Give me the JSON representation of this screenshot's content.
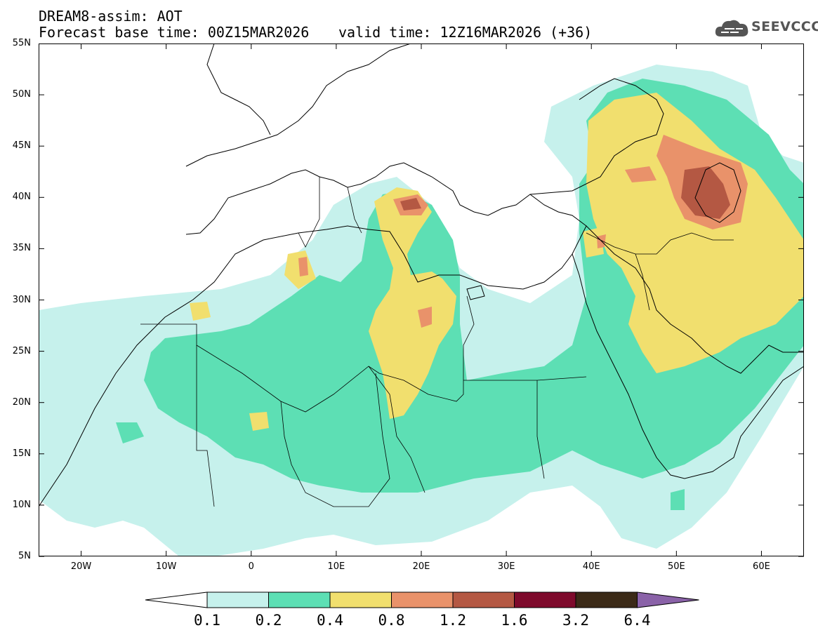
{
  "header": {
    "line1": "DREAM8-assim: AOT",
    "line2": "Forecast base time: 00Z15MAR2026",
    "line3": "valid time: 12Z16MAR2026 (+36)"
  },
  "logo": {
    "text": "SEEVCCC",
    "icon": "cloud-icon"
  },
  "map": {
    "type": "geographic-contour",
    "projection": "equirectangular",
    "lon_range": [
      -25,
      65
    ],
    "lat_range": [
      5,
      55
    ],
    "lat_labels": [
      "55N",
      "50N",
      "45N",
      "40N",
      "35N",
      "30N",
      "25N",
      "20N",
      "15N",
      "10N",
      "5N"
    ],
    "lon_labels": [
      "20W",
      "10W",
      "0",
      "10E",
      "20E",
      "30E",
      "40E",
      "50E",
      "60E"
    ],
    "features": "coastlines and country borders"
  },
  "colorbar": {
    "labels": [
      "0.1",
      "0.2",
      "0.4",
      "0.8",
      "1.2",
      "1.6",
      "3.2",
      "6.4"
    ],
    "colors": [
      "#c6f1ec",
      "#5ddfb4",
      "#f1df6e",
      "#e9926a",
      "#b45843",
      "#7e0a2c",
      "#3b2a17",
      "#8a62a8"
    ],
    "extend": "both"
  }
}
